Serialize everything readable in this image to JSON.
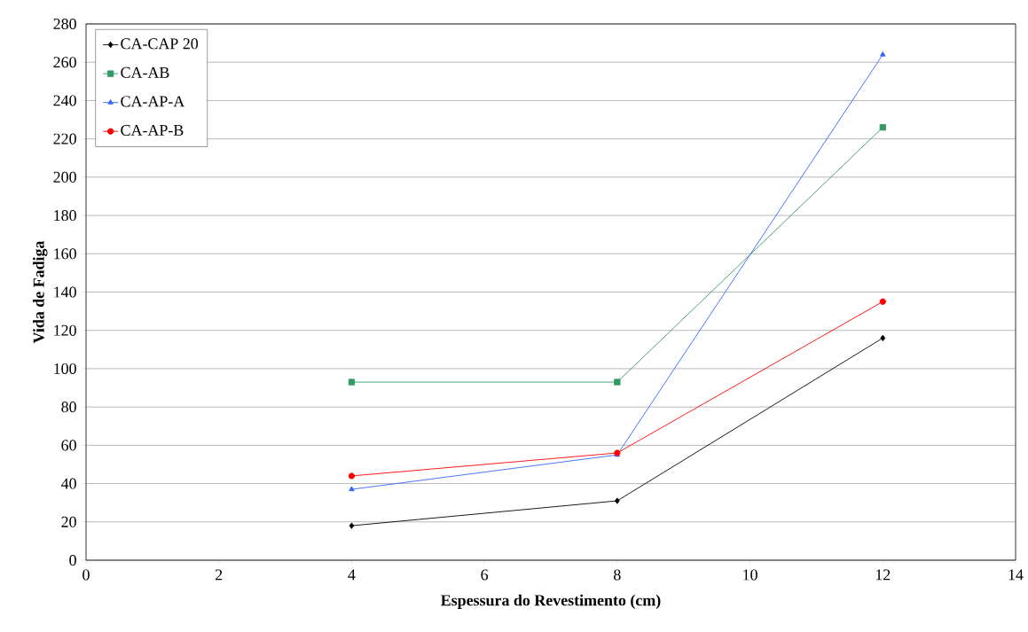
{
  "chart_data": {
    "type": "line",
    "xlabel": "Espessura do Revestimento (cm)",
    "ylabel": "Vida de Fadiga",
    "x": [
      4,
      8,
      12
    ],
    "series": [
      {
        "name": "CA-CAP 20",
        "color": "#000000",
        "marker": "diamond",
        "values": [
          18,
          31,
          116
        ]
      },
      {
        "name": "CA-AB",
        "color": "#339966",
        "marker": "square",
        "values": [
          93,
          93,
          226
        ]
      },
      {
        "name": "CA-AP-A",
        "color": "#3366ff",
        "marker": "triangle",
        "values": [
          37,
          55,
          264
        ]
      },
      {
        "name": "CA-AP-B",
        "color": "#ff0000",
        "marker": "circle",
        "values": [
          44,
          56,
          135
        ]
      }
    ],
    "xlim": [
      0,
      14
    ],
    "xticks": [
      0,
      2,
      4,
      6,
      8,
      10,
      12,
      14
    ],
    "ylim": [
      0,
      280
    ],
    "yticks": [
      0,
      20,
      40,
      60,
      80,
      100,
      120,
      140,
      160,
      180,
      200,
      220,
      240,
      260,
      280
    ],
    "grid": "y",
    "legend": "top left",
    "line_style": "solid"
  }
}
